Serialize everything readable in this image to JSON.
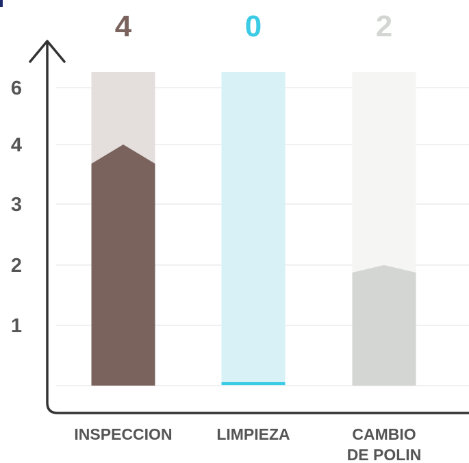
{
  "chart_data": {
    "type": "bar",
    "categories": [
      "INSPECCION",
      "LIMPIEZA",
      "CAMBIO\nDE POLIN"
    ],
    "values": [
      4,
      0,
      2
    ],
    "value_labels": [
      "4",
      "0",
      "2"
    ],
    "y_ticks": [
      "1",
      "2",
      "3",
      "4",
      "6"
    ],
    "ylim": [
      0,
      6.2
    ],
    "grid": true,
    "colors": {
      "bars": [
        "#7a635d",
        "#3ccbe4",
        "#d3d6d2"
      ],
      "backgrounds": [
        "#e4dedd",
        "#d7f1f7",
        "#f5f5f4"
      ],
      "value_labels": [
        "#7a635d",
        "#3ccbe4",
        "#d3d6d2"
      ],
      "axis": "#333333",
      "grid": "#ececec"
    }
  }
}
